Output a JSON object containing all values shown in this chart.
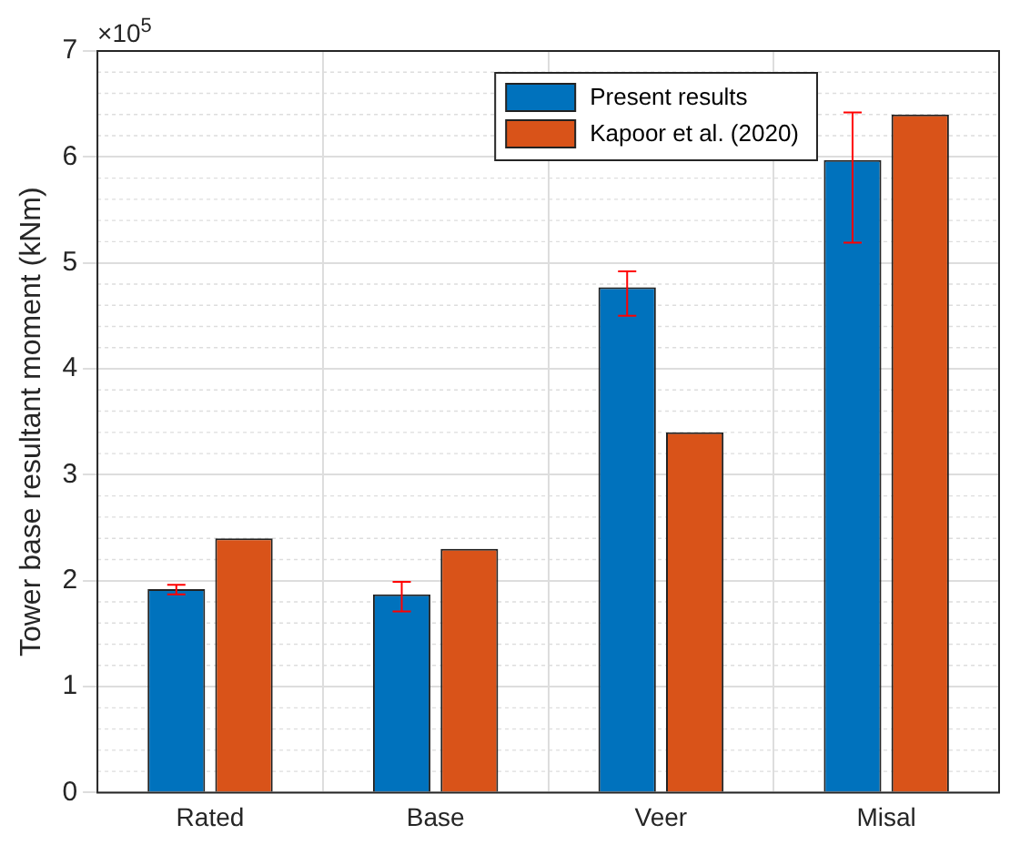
{
  "chart_data": {
    "type": "bar",
    "ylabel": "Tower base resultant moment (kNm)",
    "annotations": [
      "×10$^{5}$"
    ],
    "categories": [
      "Rated",
      "Base",
      "Veer",
      "Misal"
    ],
    "series": [
      {
        "name": "Present results",
        "color": "#0072bd",
        "values": [
          1.92,
          1.87,
          4.77,
          5.97
        ],
        "errors": [
          [
            1.87,
            1.96
          ],
          [
            1.71,
            1.99
          ],
          [
            4.5,
            4.92
          ],
          [
            5.19,
            6.42
          ]
        ]
      },
      {
        "name": "Kapoor et al. (2020)",
        "color": "#d95319",
        "values": [
          2.4,
          2.3,
          3.4,
          6.4
        ]
      }
    ],
    "ylim": [
      0,
      7
    ],
    "yticks": [
      0,
      1,
      2,
      3,
      4,
      5,
      6,
      7
    ],
    "grid": true,
    "legend": "top right"
  }
}
